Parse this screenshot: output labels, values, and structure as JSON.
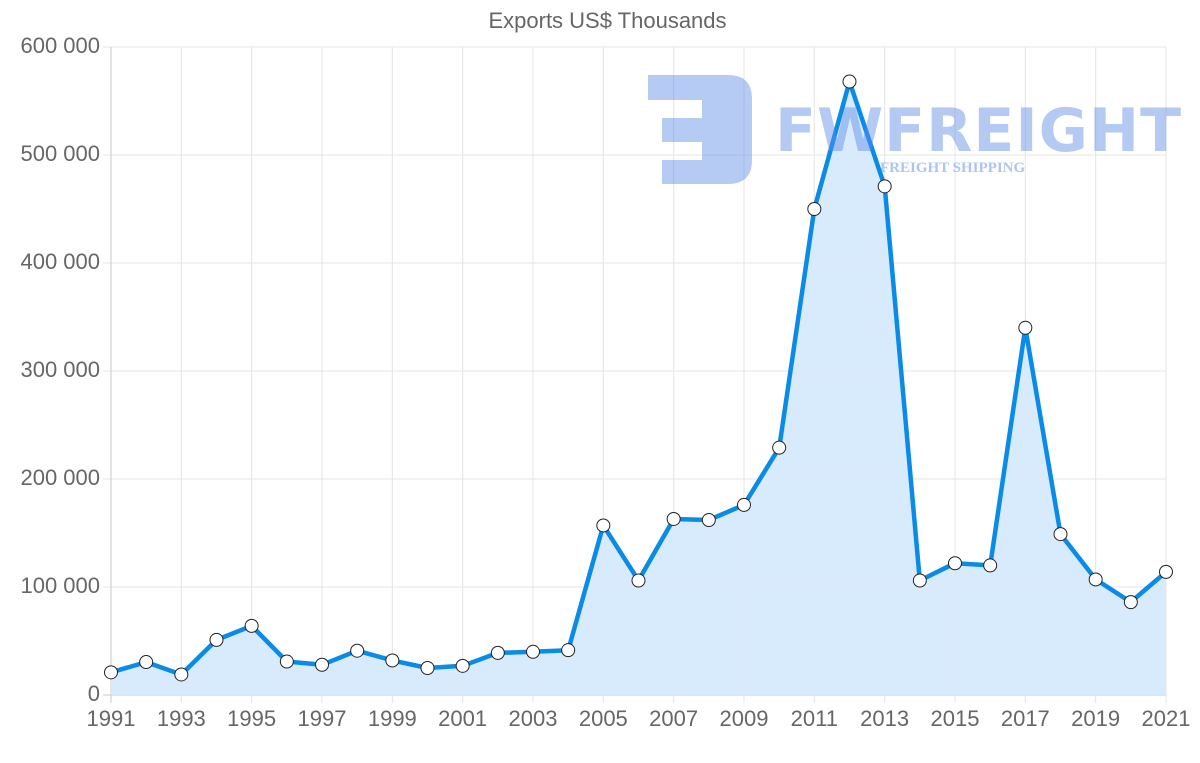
{
  "chart_data": {
    "type": "line",
    "title": "Exports US$ Thousands",
    "xlabel": "",
    "ylabel": "",
    "x": [
      1991,
      1992,
      1993,
      1994,
      1995,
      1996,
      1997,
      1998,
      1999,
      2000,
      2001,
      2002,
      2003,
      2004,
      2005,
      2006,
      2007,
      2008,
      2009,
      2010,
      2011,
      2012,
      2013,
      2014,
      2015,
      2016,
      2017,
      2018,
      2019,
      2020,
      2021
    ],
    "series": [
      {
        "name": "Exports US$ Thousands",
        "values": [
          21000,
          30500,
          19000,
          51000,
          64000,
          31000,
          28000,
          41000,
          32000,
          25000,
          27000,
          39000,
          40000,
          41500,
          157000,
          106000,
          163000,
          162000,
          176000,
          229000,
          450000,
          568000,
          471000,
          106000,
          122000,
          120000,
          340000,
          149000,
          107000,
          86000,
          114000
        ],
        "color": "#0a8be8",
        "fill": "#d6eafc"
      }
    ],
    "ylim": [
      0,
      600000
    ],
    "yticks": [
      "0",
      "100 000",
      "200 000",
      "300 000",
      "400 000",
      "500 000",
      "600 000"
    ],
    "xticks": [
      "1991",
      "1993",
      "1995",
      "1997",
      "1999",
      "2001",
      "2003",
      "2005",
      "2007",
      "2009",
      "2011",
      "2013",
      "2015",
      "2017",
      "2019",
      "2021"
    ],
    "grid": true,
    "legend": "none",
    "area_filled": true
  },
  "watermark": {
    "brand": "FWFREIGHT",
    "tagline": "FREIGHT SHIPPING"
  }
}
